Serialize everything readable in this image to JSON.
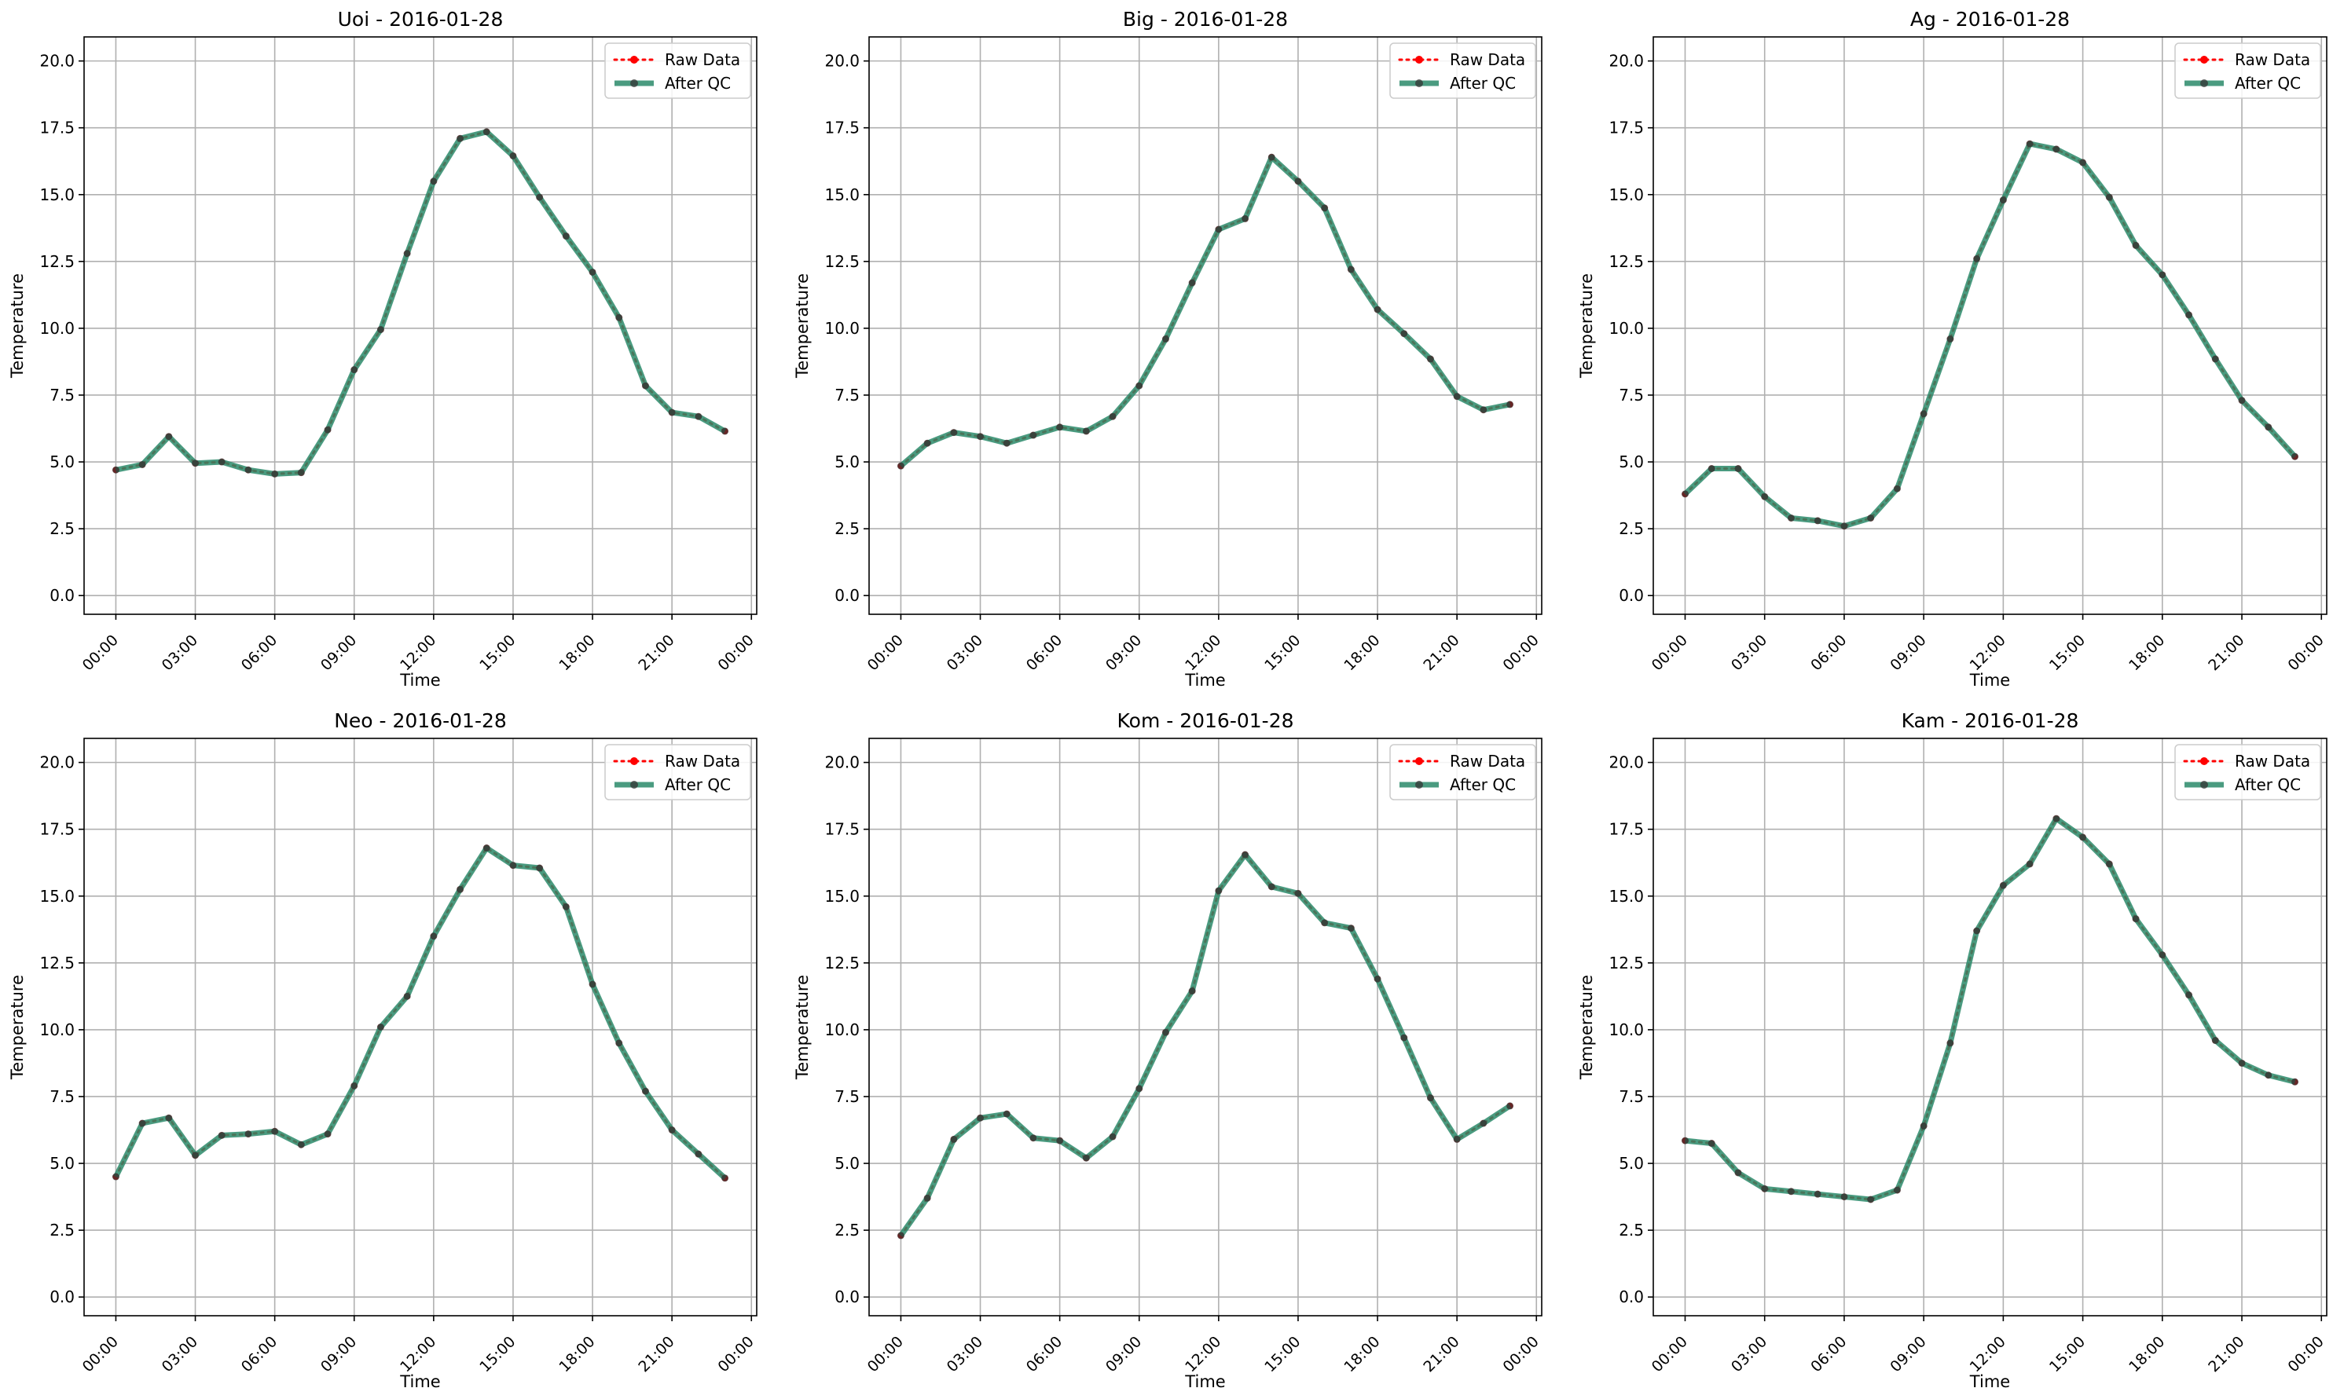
{
  "colors": {
    "raw": "#ff0000",
    "qc": "#2a8a6a",
    "qc_dots": "#333333",
    "grid": "#b0b0b0",
    "axes": "#000000"
  },
  "legend": {
    "raw_label": "Raw Data",
    "qc_label": "After QC",
    "placement": "upper-right"
  },
  "chart_data": [
    {
      "type": "line",
      "title": "Uoi - 2016-01-28",
      "xlabel": "Time",
      "ylabel": "Temperature",
      "xticks": [
        "00:00",
        "03:00",
        "06:00",
        "09:00",
        "12:00",
        "15:00",
        "18:00",
        "21:00",
        "00:00"
      ],
      "yticks": [
        "0.0",
        "2.5",
        "5.0",
        "7.5",
        "10.0",
        "12.5",
        "15.0",
        "17.5",
        "20.0"
      ],
      "xlim": [
        -1.2,
        24.2
      ],
      "ylim": [
        -0.7,
        20.9
      ],
      "grid": true,
      "x": [
        0,
        1,
        2,
        3,
        4,
        5,
        6,
        7,
        8,
        9,
        10,
        11,
        12,
        13,
        14,
        15,
        16,
        17,
        18,
        19,
        20,
        21,
        22,
        23
      ],
      "series": [
        {
          "name": "Raw Data",
          "values": [
            4.7,
            4.9,
            5.95,
            4.95,
            5.0,
            4.7,
            4.55,
            4.6,
            6.2,
            8.45,
            9.95,
            12.8,
            15.5,
            17.1,
            17.35,
            16.45,
            14.9,
            13.45,
            12.1,
            10.4,
            7.85,
            6.85,
            6.7,
            6.15
          ]
        },
        {
          "name": "After QC",
          "values": [
            4.7,
            4.9,
            5.95,
            4.95,
            5.0,
            4.7,
            4.55,
            4.6,
            6.2,
            8.45,
            9.95,
            12.8,
            15.5,
            17.1,
            17.35,
            16.45,
            14.9,
            13.45,
            12.1,
            10.4,
            7.85,
            6.85,
            6.7,
            6.15
          ]
        }
      ]
    },
    {
      "type": "line",
      "title": "Big - 2016-01-28",
      "xlabel": "Time",
      "ylabel": "Temperature",
      "xticks": [
        "00:00",
        "03:00",
        "06:00",
        "09:00",
        "12:00",
        "15:00",
        "18:00",
        "21:00",
        "00:00"
      ],
      "yticks": [
        "0.0",
        "2.5",
        "5.0",
        "7.5",
        "10.0",
        "12.5",
        "15.0",
        "17.5",
        "20.0"
      ],
      "xlim": [
        -1.2,
        24.2
      ],
      "ylim": [
        -0.7,
        20.9
      ],
      "grid": true,
      "x": [
        0,
        1,
        2,
        3,
        4,
        5,
        6,
        7,
        8,
        9,
        10,
        11,
        12,
        13,
        14,
        15,
        16,
        17,
        18,
        19,
        20,
        21,
        22,
        23
      ],
      "series": [
        {
          "name": "Raw Data",
          "values": [
            4.85,
            5.7,
            6.1,
            5.95,
            5.7,
            6.0,
            6.3,
            6.15,
            6.7,
            7.85,
            9.6,
            11.7,
            13.7,
            14.1,
            16.4,
            15.5,
            14.5,
            12.2,
            10.7,
            9.8,
            8.85,
            7.45,
            6.95,
            7.15
          ]
        },
        {
          "name": "After QC",
          "values": [
            4.85,
            5.7,
            6.1,
            5.95,
            5.7,
            6.0,
            6.3,
            6.15,
            6.7,
            7.85,
            9.6,
            11.7,
            13.7,
            14.1,
            16.4,
            15.5,
            14.5,
            12.2,
            10.7,
            9.8,
            8.85,
            7.45,
            6.95,
            7.15
          ]
        }
      ]
    },
    {
      "type": "line",
      "title": "Ag - 2016-01-28",
      "xlabel": "Time",
      "ylabel": "Temperature",
      "xticks": [
        "00:00",
        "03:00",
        "06:00",
        "09:00",
        "12:00",
        "15:00",
        "18:00",
        "21:00",
        "00:00"
      ],
      "yticks": [
        "0.0",
        "2.5",
        "5.0",
        "7.5",
        "10.0",
        "12.5",
        "15.0",
        "17.5",
        "20.0"
      ],
      "xlim": [
        -1.2,
        24.2
      ],
      "ylim": [
        -0.7,
        20.9
      ],
      "grid": true,
      "x": [
        0,
        1,
        2,
        3,
        4,
        5,
        6,
        7,
        8,
        9,
        10,
        11,
        12,
        13,
        14,
        15,
        16,
        17,
        18,
        19,
        20,
        21,
        22,
        23
      ],
      "series": [
        {
          "name": "Raw Data",
          "values": [
            3.8,
            4.75,
            4.75,
            3.7,
            2.9,
            2.8,
            2.6,
            2.9,
            4.0,
            6.8,
            9.6,
            12.6,
            14.8,
            16.9,
            16.7,
            16.2,
            14.9,
            13.1,
            12.0,
            10.5,
            8.85,
            7.3,
            6.3,
            5.2
          ]
        },
        {
          "name": "After QC",
          "values": [
            3.8,
            4.75,
            4.75,
            3.7,
            2.9,
            2.8,
            2.6,
            2.9,
            4.0,
            6.8,
            9.6,
            12.6,
            14.8,
            16.9,
            16.7,
            16.2,
            14.9,
            13.1,
            12.0,
            10.5,
            8.85,
            7.3,
            6.3,
            5.2
          ]
        }
      ]
    },
    {
      "type": "line",
      "title": "Neo - 2016-01-28",
      "xlabel": "Time",
      "ylabel": "Temperature",
      "xticks": [
        "00:00",
        "03:00",
        "06:00",
        "09:00",
        "12:00",
        "15:00",
        "18:00",
        "21:00",
        "00:00"
      ],
      "yticks": [
        "0.0",
        "2.5",
        "5.0",
        "7.5",
        "10.0",
        "12.5",
        "15.0",
        "17.5",
        "20.0"
      ],
      "xlim": [
        -1.2,
        24.2
      ],
      "ylim": [
        -0.7,
        20.9
      ],
      "grid": true,
      "x": [
        0,
        1,
        2,
        3,
        4,
        5,
        6,
        7,
        8,
        9,
        10,
        11,
        12,
        13,
        14,
        15,
        16,
        17,
        18,
        19,
        20,
        21,
        22,
        23
      ],
      "series": [
        {
          "name": "Raw Data",
          "values": [
            4.5,
            6.5,
            6.7,
            5.3,
            6.05,
            6.1,
            6.2,
            5.7,
            6.1,
            7.9,
            10.1,
            11.25,
            13.5,
            15.25,
            16.8,
            16.15,
            16.05,
            14.6,
            11.7,
            9.5,
            7.7,
            6.25,
            5.35,
            4.45
          ]
        },
        {
          "name": "After QC",
          "values": [
            4.5,
            6.5,
            6.7,
            5.3,
            6.05,
            6.1,
            6.2,
            5.7,
            6.1,
            7.9,
            10.1,
            11.25,
            13.5,
            15.25,
            16.8,
            16.15,
            16.05,
            14.6,
            11.7,
            9.5,
            7.7,
            6.25,
            5.35,
            4.45
          ]
        }
      ]
    },
    {
      "type": "line",
      "title": "Kom - 2016-01-28",
      "xlabel": "Time",
      "ylabel": "Temperature",
      "xticks": [
        "00:00",
        "03:00",
        "06:00",
        "09:00",
        "12:00",
        "15:00",
        "18:00",
        "21:00",
        "00:00"
      ],
      "yticks": [
        "0.0",
        "2.5",
        "5.0",
        "7.5",
        "10.0",
        "12.5",
        "15.0",
        "17.5",
        "20.0"
      ],
      "xlim": [
        -1.2,
        24.2
      ],
      "ylim": [
        -0.7,
        20.9
      ],
      "grid": true,
      "x": [
        0,
        1,
        2,
        3,
        4,
        5,
        6,
        7,
        8,
        9,
        10,
        11,
        12,
        13,
        14,
        15,
        16,
        17,
        18,
        19,
        20,
        21,
        22,
        23
      ],
      "series": [
        {
          "name": "Raw Data",
          "values": [
            2.3,
            3.7,
            5.9,
            6.7,
            6.85,
            5.95,
            5.85,
            5.2,
            6.0,
            7.8,
            9.9,
            11.45,
            15.2,
            16.55,
            15.35,
            15.1,
            14.0,
            13.8,
            11.9,
            9.7,
            7.45,
            5.9,
            6.5,
            7.15
          ]
        },
        {
          "name": "After QC",
          "values": [
            2.3,
            3.7,
            5.9,
            6.7,
            6.85,
            5.95,
            5.85,
            5.2,
            6.0,
            7.8,
            9.9,
            11.45,
            15.2,
            16.55,
            15.35,
            15.1,
            14.0,
            13.8,
            11.9,
            9.7,
            7.45,
            5.9,
            6.5,
            7.15
          ]
        }
      ]
    },
    {
      "type": "line",
      "title": "Kam - 2016-01-28",
      "xlabel": "Time",
      "ylabel": "Temperature",
      "xticks": [
        "00:00",
        "03:00",
        "06:00",
        "09:00",
        "12:00",
        "15:00",
        "18:00",
        "21:00",
        "00:00"
      ],
      "yticks": [
        "0.0",
        "2.5",
        "5.0",
        "7.5",
        "10.0",
        "12.5",
        "15.0",
        "17.5",
        "20.0"
      ],
      "xlim": [
        -1.2,
        24.2
      ],
      "ylim": [
        -0.7,
        20.9
      ],
      "grid": true,
      "x": [
        0,
        1,
        2,
        3,
        4,
        5,
        6,
        7,
        8,
        9,
        10,
        11,
        12,
        13,
        14,
        15,
        16,
        17,
        18,
        19,
        20,
        21,
        22,
        23
      ],
      "series": [
        {
          "name": "Raw Data",
          "values": [
            5.85,
            5.75,
            4.65,
            4.05,
            3.95,
            3.85,
            3.75,
            3.65,
            4.0,
            6.4,
            9.5,
            13.7,
            15.4,
            16.2,
            17.9,
            17.2,
            16.2,
            14.15,
            12.8,
            11.3,
            9.6,
            8.75,
            8.3,
            8.05
          ]
        },
        {
          "name": "After QC",
          "values": [
            5.85,
            5.75,
            4.65,
            4.05,
            3.95,
            3.85,
            3.75,
            3.65,
            4.0,
            6.4,
            9.5,
            13.7,
            15.4,
            16.2,
            17.9,
            17.2,
            16.2,
            14.15,
            12.8,
            11.3,
            9.6,
            8.75,
            8.3,
            8.05
          ]
        }
      ]
    }
  ]
}
